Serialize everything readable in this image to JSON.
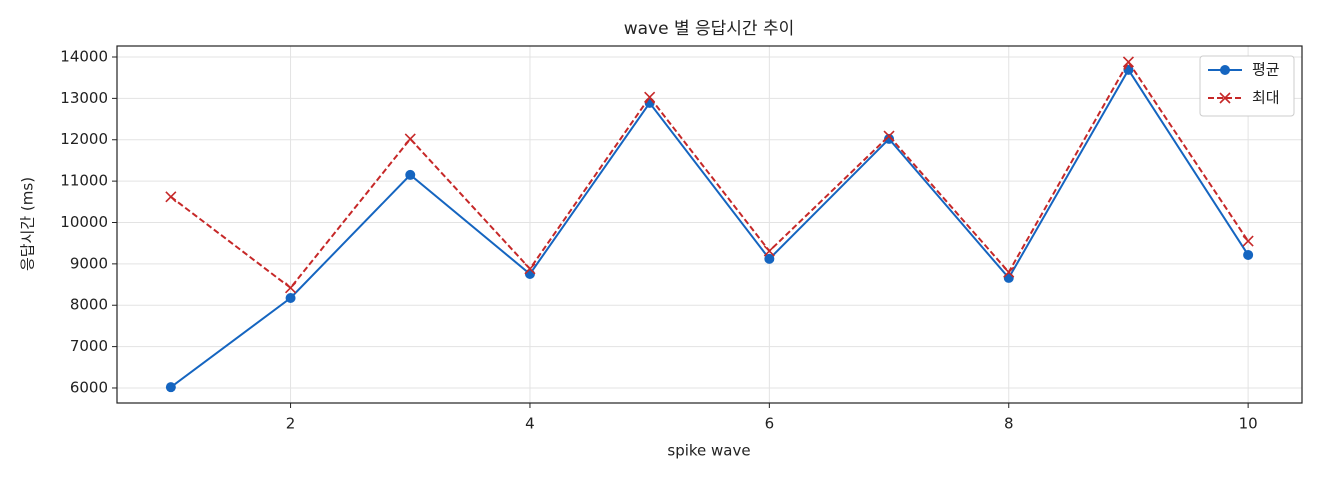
{
  "chart_data": {
    "type": "line",
    "title": "wave 별 응답시간 추이",
    "x_label": "spike wave",
    "y_label": "응답시간 (ms)",
    "x": [
      1,
      2,
      3,
      4,
      5,
      6,
      7,
      8,
      9,
      10
    ],
    "series": [
      {
        "name": "평균",
        "color": "#1565c0",
        "marker": "circle",
        "dash": false,
        "values": [
          6020,
          8175,
          11150,
          8755,
          12890,
          9120,
          12020,
          8660,
          13690,
          9215
        ]
      },
      {
        "name": "최대",
        "color": "#c62828",
        "marker": "x",
        "dash": true,
        "values": [
          10620,
          8420,
          12020,
          8880,
          13030,
          9310,
          12090,
          8800,
          13880,
          9550
        ]
      }
    ],
    "xlim": [
      0.55,
      10.45
    ],
    "xticks": [
      2,
      4,
      6,
      8,
      10
    ],
    "ylim": [
      5637,
      14266
    ],
    "yticks": [
      6000,
      7000,
      8000,
      9000,
      10000,
      11000,
      12000,
      13000,
      14000
    ],
    "grid": true,
    "legend": "upper right"
  }
}
